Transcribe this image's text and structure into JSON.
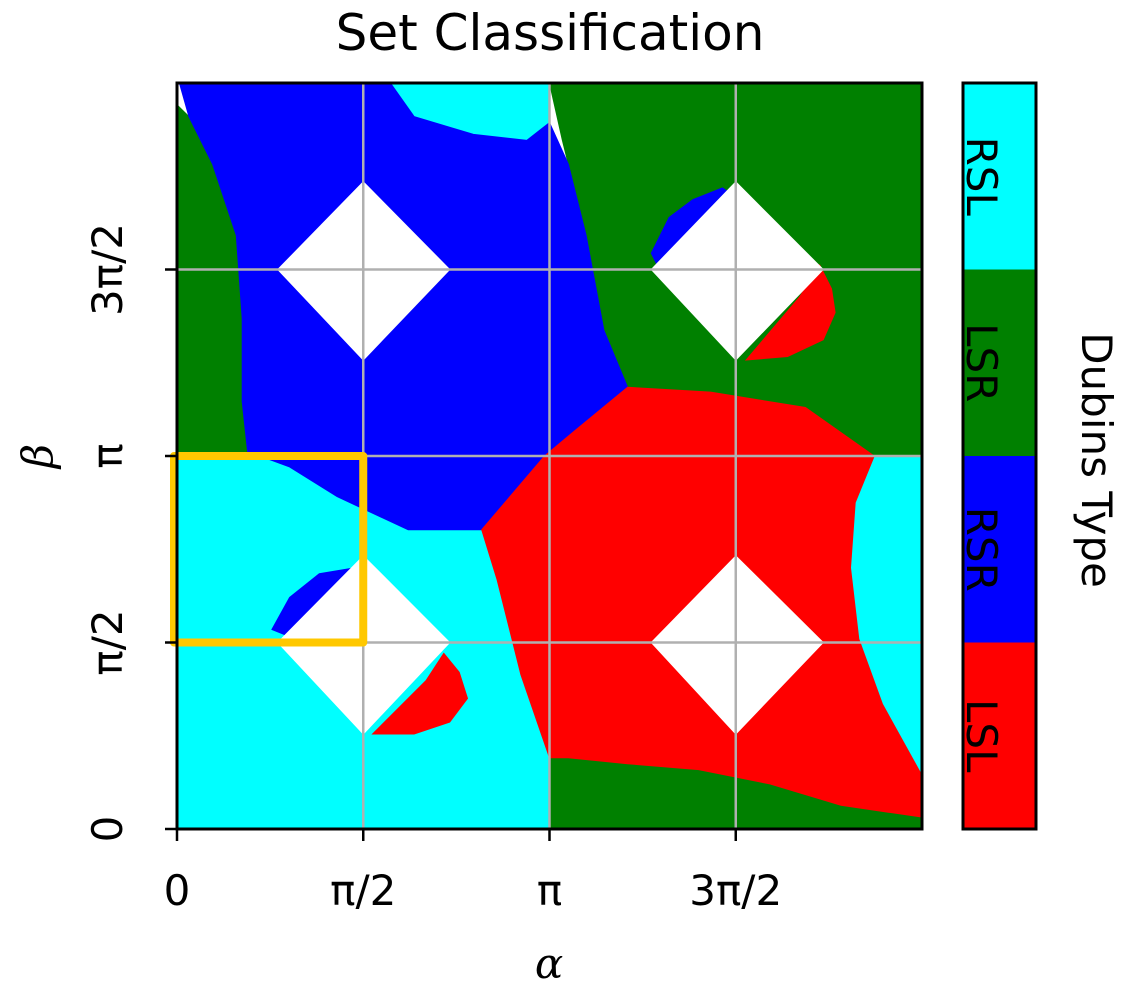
{
  "chart_data": {
    "type": "heatmap",
    "title": "Set Classification",
    "xlabel": "α",
    "ylabel": "β",
    "xlim": [
      0,
      6.2832
    ],
    "ylim": [
      0,
      6.2832
    ],
    "x_tick_labels": [
      "0",
      "π/2",
      "π",
      "3π/2"
    ],
    "y_tick_labels": [
      "0",
      "π/2",
      "π",
      "3π/2"
    ],
    "grid": true,
    "colorbar": {
      "label": "Dubins Type",
      "categories": [
        "LSL",
        "RSR",
        "LSR",
        "RSL"
      ],
      "colors": [
        "#ff0000",
        "#0000ff",
        "#008000",
        "#00ffff"
      ]
    },
    "highlight_box": {
      "x_range": [
        0,
        1.5708
      ],
      "y_range": [
        1.5708,
        3.1416
      ],
      "color": "#ffc800"
    },
    "regions": [
      {
        "name": "RSL",
        "color": "#00ffff",
        "polygon": [
          [
            0,
            0
          ],
          [
            3.1416,
            0
          ],
          [
            3.1416,
            0.6
          ],
          [
            2.9,
            1.3
          ],
          [
            2.7,
            2.1
          ],
          [
            2.57,
            2.52
          ],
          [
            1.95,
            2.52
          ],
          [
            1.35,
            2.8
          ],
          [
            0.95,
            3.05
          ],
          [
            0.7,
            3.1416
          ],
          [
            0,
            3.1416
          ]
        ]
      },
      {
        "name": "RSL",
        "color": "#00ffff",
        "polygon": [
          [
            1.5,
            6.2832
          ],
          [
            3.1416,
            6.2832
          ],
          [
            3.1416,
            5.95
          ],
          [
            2.95,
            5.8
          ],
          [
            2.5,
            5.85
          ],
          [
            2.0,
            6.0
          ],
          [
            1.8,
            6.2832
          ]
        ]
      },
      {
        "name": "RSL",
        "color": "#00ffff",
        "polygon": [
          [
            5.88,
            3.1416
          ],
          [
            6.2832,
            3.1416
          ],
          [
            6.2832,
            0.45
          ],
          [
            5.95,
            1.05
          ],
          [
            5.75,
            1.6
          ],
          [
            5.68,
            2.2
          ],
          [
            5.72,
            2.75
          ],
          [
            5.88,
            3.1416
          ]
        ]
      },
      {
        "name": "LSR",
        "color": "#008000",
        "polygon": [
          [
            3.1416,
            6.2832
          ],
          [
            6.2832,
            6.2832
          ],
          [
            6.2832,
            3.1416
          ],
          [
            5.88,
            3.1416
          ],
          [
            5.3,
            3.55
          ],
          [
            4.5,
            3.68
          ],
          [
            3.8,
            3.72
          ],
          [
            3.6,
            4.2
          ],
          [
            3.45,
            5.0
          ],
          [
            3.25,
            5.8
          ],
          [
            3.1416,
            6.2832
          ]
        ]
      },
      {
        "name": "LSR",
        "color": "#008000",
        "polygon": [
          [
            3.1416,
            0
          ],
          [
            6.2832,
            0
          ],
          [
            6.2832,
            0.1
          ],
          [
            5.6,
            0.2
          ],
          [
            5.0,
            0.38
          ],
          [
            4.4,
            0.5
          ],
          [
            3.8,
            0.55
          ],
          [
            3.3,
            0.6
          ],
          [
            3.1416,
            0.6
          ]
        ]
      },
      {
        "name": "LSR",
        "color": "#008000",
        "polygon": [
          [
            0,
            3.1416
          ],
          [
            0.6,
            3.1416
          ],
          [
            0.55,
            3.6
          ],
          [
            0.55,
            4.3
          ],
          [
            0.5,
            5.0
          ],
          [
            0.3,
            5.6
          ],
          [
            0.1,
            6.0
          ],
          [
            0,
            6.1
          ]
        ]
      },
      {
        "name": "RSR",
        "color": "#0000ff",
        "polygon": [
          [
            0.02,
            6.2832
          ],
          [
            1.8,
            6.2832
          ],
          [
            2.0,
            6.0
          ],
          [
            2.5,
            5.85
          ],
          [
            2.95,
            5.8
          ],
          [
            3.1416,
            5.95
          ],
          [
            3.3,
            5.6
          ],
          [
            3.45,
            5.0
          ],
          [
            3.6,
            4.2
          ],
          [
            3.8,
            3.72
          ],
          [
            3.35,
            3.35
          ],
          [
            3.1,
            3.1416
          ],
          [
            2.57,
            2.52
          ],
          [
            1.95,
            2.52
          ],
          [
            1.35,
            2.8
          ],
          [
            0.95,
            3.05
          ],
          [
            0.7,
            3.1416
          ],
          [
            0.6,
            3.1416
          ],
          [
            0.55,
            3.6
          ],
          [
            0.55,
            4.3
          ],
          [
            0.5,
            5.0
          ],
          [
            0.3,
            5.6
          ],
          [
            0.1,
            6.0
          ]
        ]
      },
      {
        "name": "LSL",
        "color": "#ff0000",
        "polygon": [
          [
            3.8,
            3.72
          ],
          [
            4.5,
            3.68
          ],
          [
            5.3,
            3.55
          ],
          [
            5.88,
            3.1416
          ],
          [
            5.72,
            2.75
          ],
          [
            5.68,
            2.2
          ],
          [
            5.75,
            1.6
          ],
          [
            5.95,
            1.05
          ],
          [
            6.2832,
            0.45
          ],
          [
            6.2832,
            0.1
          ],
          [
            5.6,
            0.2
          ],
          [
            5.0,
            0.38
          ],
          [
            4.4,
            0.5
          ],
          [
            3.8,
            0.55
          ],
          [
            3.3,
            0.6
          ],
          [
            3.1416,
            0.6
          ],
          [
            2.9,
            1.3
          ],
          [
            2.7,
            2.1
          ],
          [
            2.57,
            2.52
          ],
          [
            3.1,
            3.1416
          ],
          [
            3.35,
            3.35
          ]
        ]
      },
      {
        "name": "RSR",
        "color": "#0000ff",
        "polygon": [
          [
            0.8,
            1.68
          ],
          [
            0.95,
            1.95
          ],
          [
            1.2,
            2.15
          ],
          [
            1.5,
            2.2
          ],
          [
            1.55,
            2.1
          ],
          [
            1.0,
            1.6
          ]
        ]
      },
      {
        "name": "RSR",
        "color": "#0000ff",
        "polygon": [
          [
            4.0,
            4.85
          ],
          [
            4.15,
            5.15
          ],
          [
            4.35,
            5.3
          ],
          [
            4.6,
            5.4
          ],
          [
            4.75,
            5.3
          ],
          [
            4.1,
            4.65
          ]
        ]
      },
      {
        "name": "LSL",
        "color": "#ff0000",
        "polygon": [
          [
            1.65,
            0.8
          ],
          [
            2.0,
            0.8
          ],
          [
            2.3,
            0.9
          ],
          [
            2.45,
            1.1
          ],
          [
            2.38,
            1.32
          ],
          [
            2.25,
            1.48
          ],
          [
            2.1,
            1.25
          ]
        ]
      },
      {
        "name": "LSL",
        "color": "#ff0000",
        "polygon": [
          [
            4.8,
            3.95
          ],
          [
            5.15,
            3.98
          ],
          [
            5.45,
            4.12
          ],
          [
            5.55,
            4.35
          ],
          [
            5.52,
            4.55
          ],
          [
            5.42,
            4.75
          ],
          [
            5.25,
            4.48
          ]
        ]
      },
      {
        "name": "excluded",
        "color": "#ffffff",
        "polygon": [
          [
            0.85,
            1.5708
          ],
          [
            1.5708,
            2.3
          ],
          [
            2.3,
            1.5708
          ],
          [
            1.5708,
            0.8
          ]
        ]
      },
      {
        "name": "excluded",
        "color": "#ffffff",
        "polygon": [
          [
            0.85,
            4.7124
          ],
          [
            1.5708,
            5.45
          ],
          [
            2.3,
            4.7124
          ],
          [
            1.5708,
            3.95
          ]
        ]
      },
      {
        "name": "excluded",
        "color": "#ffffff",
        "polygon": [
          [
            4.0,
            1.5708
          ],
          [
            4.7124,
            2.3
          ],
          [
            5.45,
            1.5708
          ],
          [
            4.7124,
            0.8
          ]
        ]
      },
      {
        "name": "excluded",
        "color": "#ffffff",
        "polygon": [
          [
            4.0,
            4.7124
          ],
          [
            4.7124,
            5.45
          ],
          [
            5.45,
            4.7124
          ],
          [
            4.7124,
            3.95
          ]
        ]
      }
    ]
  }
}
